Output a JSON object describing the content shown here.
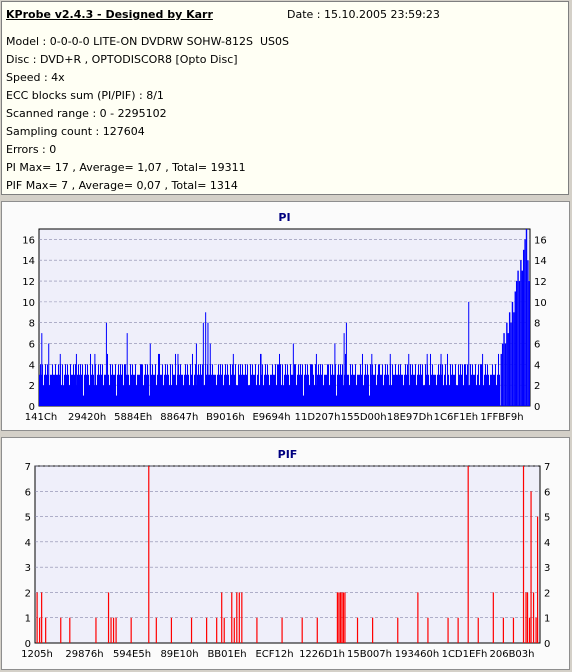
{
  "header": {
    "title": "KProbe v2.4.3 - Designed by Karr",
    "date": "Date : 15.10.2005 23:59:23",
    "lines": [
      "Model : 0-0-0-0 LITE-ON DVDRW SOHW-812S  US0S",
      "Disc : DVD+R , OPTODISCOR8 [Opto Disc]",
      "Speed : 4x",
      "ECC blocks sum (PI/PIF) : 8/1",
      "Scanned range : 0 - 2295102",
      "Sampling count : 127604",
      "Errors : 0",
      "PI Max= 17 , Average= 1,07 , Total= 19311",
      "PIF Max= 7 , Average= 0,07 , Total= 1314"
    ]
  },
  "colors": {
    "pi": "#0000ff",
    "pif": "#ff0000",
    "plot_bg": "#efeffa",
    "title": "#000080"
  },
  "chart_data": [
    {
      "type": "bar",
      "title": "PI",
      "ylim": [
        0,
        17
      ],
      "yticks": [
        0,
        2,
        4,
        6,
        8,
        10,
        12,
        14,
        16
      ],
      "xtick_labels": [
        "141Ch",
        "29420h",
        "5884Eh",
        "88647h",
        "B9016h",
        "E9694h",
        "11D207h",
        "155D00h",
        "18E97Dh",
        "1C6F1Eh",
        "1FFBF9h"
      ],
      "baseline": [
        3,
        4,
        3,
        4,
        2,
        3,
        4,
        3,
        4,
        3,
        2,
        4,
        3,
        4,
        3,
        3,
        4,
        2,
        3,
        4
      ],
      "spikes": [
        {
          "x": 0.005,
          "v": 7
        },
        {
          "x": 0.02,
          "v": 6
        },
        {
          "x": 0.045,
          "v": 5
        },
        {
          "x": 0.08,
          "v": 5
        },
        {
          "x": 0.12,
          "v": 5
        },
        {
          "x": 0.145,
          "v": 8
        },
        {
          "x": 0.19,
          "v": 7
        },
        {
          "x": 0.24,
          "v": 6
        },
        {
          "x": 0.26,
          "v": 5
        },
        {
          "x": 0.3,
          "v": 5
        },
        {
          "x": 0.34,
          "v": 6
        },
        {
          "x": 0.355,
          "v": 8
        },
        {
          "x": 0.36,
          "v": 9
        },
        {
          "x": 0.365,
          "v": 8
        },
        {
          "x": 0.37,
          "v": 6
        },
        {
          "x": 0.42,
          "v": 5
        },
        {
          "x": 0.48,
          "v": 5
        },
        {
          "x": 0.52,
          "v": 5
        },
        {
          "x": 0.55,
          "v": 6
        },
        {
          "x": 0.6,
          "v": 5
        },
        {
          "x": 0.64,
          "v": 6
        },
        {
          "x": 0.66,
          "v": 7
        },
        {
          "x": 0.665,
          "v": 8
        },
        {
          "x": 0.72,
          "v": 5
        },
        {
          "x": 0.76,
          "v": 5
        },
        {
          "x": 0.8,
          "v": 5
        },
        {
          "x": 0.84,
          "v": 5
        },
        {
          "x": 0.87,
          "v": 5
        },
        {
          "x": 0.93,
          "v": 10
        },
        {
          "x": 0.96,
          "v": 5
        }
      ],
      "tail": [
        5,
        6,
        7,
        6,
        8,
        7,
        9,
        8,
        10,
        9,
        11,
        12,
        13,
        12,
        14,
        13,
        15,
        16,
        17,
        14,
        12
      ]
    },
    {
      "type": "bar",
      "title": "PIF",
      "ylim": [
        0,
        7
      ],
      "yticks": [
        0,
        1,
        2,
        3,
        4,
        5,
        6,
        7
      ],
      "xtick_labels": [
        "1205h",
        "29876h",
        "594E5h",
        "89E10h",
        "BB01Eh",
        "ECF12h",
        "1226D1h",
        "15B007h",
        "193460h",
        "1CD1EFh",
        "206B03h"
      ],
      "bars": [
        {
          "x": 0.003,
          "v": 2
        },
        {
          "x": 0.008,
          "v": 1
        },
        {
          "x": 0.012,
          "v": 2
        },
        {
          "x": 0.02,
          "v": 1
        },
        {
          "x": 0.05,
          "v": 1
        },
        {
          "x": 0.068,
          "v": 1
        },
        {
          "x": 0.12,
          "v": 1
        },
        {
          "x": 0.145,
          "v": 2
        },
        {
          "x": 0.15,
          "v": 1
        },
        {
          "x": 0.155,
          "v": 1
        },
        {
          "x": 0.16,
          "v": 1
        },
        {
          "x": 0.19,
          "v": 1
        },
        {
          "x": 0.225,
          "v": 7
        },
        {
          "x": 0.24,
          "v": 1
        },
        {
          "x": 0.27,
          "v": 1
        },
        {
          "x": 0.31,
          "v": 1
        },
        {
          "x": 0.34,
          "v": 1
        },
        {
          "x": 0.36,
          "v": 1
        },
        {
          "x": 0.37,
          "v": 2
        },
        {
          "x": 0.375,
          "v": 1
        },
        {
          "x": 0.39,
          "v": 2
        },
        {
          "x": 0.395,
          "v": 1
        },
        {
          "x": 0.4,
          "v": 2
        },
        {
          "x": 0.405,
          "v": 2
        },
        {
          "x": 0.41,
          "v": 2
        },
        {
          "x": 0.44,
          "v": 1
        },
        {
          "x": 0.49,
          "v": 1
        },
        {
          "x": 0.53,
          "v": 1
        },
        {
          "x": 0.56,
          "v": 1
        },
        {
          "x": 0.6,
          "v": 2
        },
        {
          "x": 0.603,
          "v": 2
        },
        {
          "x": 0.606,
          "v": 2
        },
        {
          "x": 0.609,
          "v": 2
        },
        {
          "x": 0.612,
          "v": 2
        },
        {
          "x": 0.615,
          "v": 2
        },
        {
          "x": 0.64,
          "v": 1
        },
        {
          "x": 0.67,
          "v": 1
        },
        {
          "x": 0.72,
          "v": 1
        },
        {
          "x": 0.76,
          "v": 2
        },
        {
          "x": 0.78,
          "v": 1
        },
        {
          "x": 0.82,
          "v": 1
        },
        {
          "x": 0.84,
          "v": 1
        },
        {
          "x": 0.86,
          "v": 7
        },
        {
          "x": 0.88,
          "v": 1
        },
        {
          "x": 0.91,
          "v": 2
        },
        {
          "x": 0.93,
          "v": 1
        },
        {
          "x": 0.95,
          "v": 1
        },
        {
          "x": 0.97,
          "v": 7
        },
        {
          "x": 0.975,
          "v": 2
        },
        {
          "x": 0.978,
          "v": 2
        },
        {
          "x": 0.982,
          "v": 1
        },
        {
          "x": 0.985,
          "v": 6
        },
        {
          "x": 0.99,
          "v": 2
        },
        {
          "x": 0.995,
          "v": 1
        },
        {
          "x": 0.998,
          "v": 5
        }
      ]
    }
  ]
}
